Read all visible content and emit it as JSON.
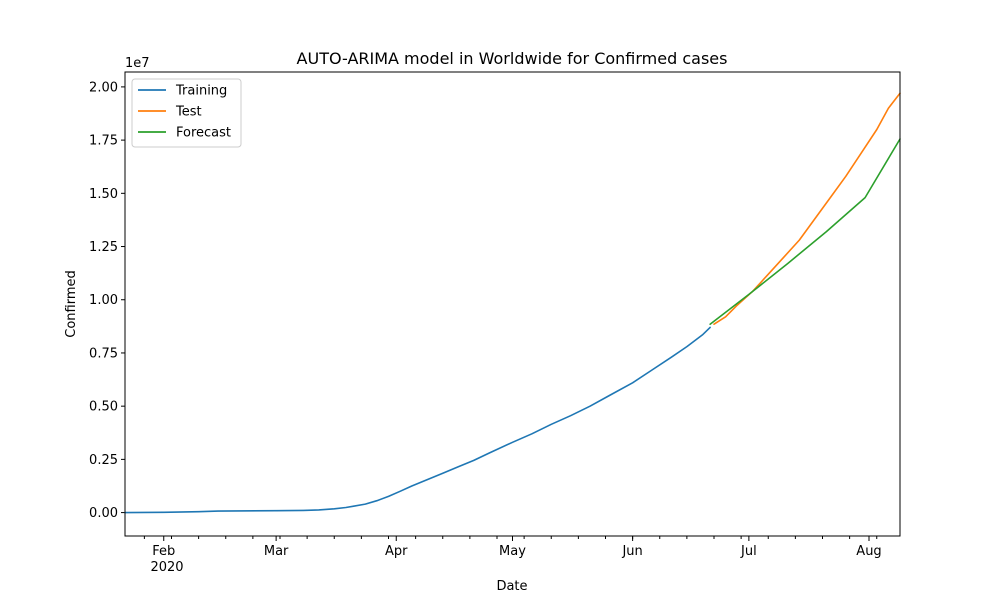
{
  "chart_data": {
    "type": "line",
    "title": "AUTO-ARIMA model in Worldwide for Confirmed cases",
    "xlabel": "Date",
    "ylabel": "Confirmed",
    "y_offset_label": "1e7",
    "xlim": [
      "2020-01-22",
      "2020-08-09"
    ],
    "ylim": [
      -1100000,
      20700000
    ],
    "x_ticks": [
      {
        "date": "2020-02-01",
        "label": "Feb"
      },
      {
        "date": "2020-03-01",
        "label": "Mar"
      },
      {
        "date": "2020-04-01",
        "label": "Apr"
      },
      {
        "date": "2020-05-01",
        "label": "May"
      },
      {
        "date": "2020-06-01",
        "label": "Jun"
      },
      {
        "date": "2020-07-01",
        "label": "Jul"
      },
      {
        "date": "2020-08-01",
        "label": "Aug"
      }
    ],
    "x_year_label": "2020",
    "y_ticks": [
      {
        "value": 0,
        "label": "0.00"
      },
      {
        "value": 2500000,
        "label": "0.25"
      },
      {
        "value": 5000000,
        "label": "0.50"
      },
      {
        "value": 7500000,
        "label": "0.75"
      },
      {
        "value": 10000000,
        "label": "1.00"
      },
      {
        "value": 12500000,
        "label": "1.25"
      },
      {
        "value": 15000000,
        "label": "1.50"
      },
      {
        "value": 17500000,
        "label": "1.75"
      },
      {
        "value": 20000000,
        "label": "2.00"
      }
    ],
    "legend_position": "top-left",
    "grid": false,
    "series": [
      {
        "name": "Training",
        "color": "#1f77b4",
        "points": [
          [
            "2020-01-22",
            0
          ],
          [
            "2020-02-01",
            12000
          ],
          [
            "2020-02-10",
            40000
          ],
          [
            "2020-02-15",
            70000
          ],
          [
            "2020-02-20",
            78000
          ],
          [
            "2020-03-01",
            88000
          ],
          [
            "2020-03-08",
            105000
          ],
          [
            "2020-03-12",
            128000
          ],
          [
            "2020-03-16",
            180000
          ],
          [
            "2020-03-19",
            240000
          ],
          [
            "2020-03-21",
            300000
          ],
          [
            "2020-03-24",
            400000
          ],
          [
            "2020-03-27",
            560000
          ],
          [
            "2020-03-30",
            760000
          ],
          [
            "2020-04-02",
            1000000
          ],
          [
            "2020-04-05",
            1250000
          ],
          [
            "2020-04-09",
            1550000
          ],
          [
            "2020-04-13",
            1850000
          ],
          [
            "2020-04-17",
            2150000
          ],
          [
            "2020-04-21",
            2450000
          ],
          [
            "2020-04-25",
            2800000
          ],
          [
            "2020-05-01",
            3300000
          ],
          [
            "2020-05-06",
            3700000
          ],
          [
            "2020-05-11",
            4150000
          ],
          [
            "2020-05-16",
            4550000
          ],
          [
            "2020-05-21",
            5000000
          ],
          [
            "2020-05-26",
            5500000
          ],
          [
            "2020-06-01",
            6100000
          ],
          [
            "2020-06-06",
            6700000
          ],
          [
            "2020-06-11",
            7300000
          ],
          [
            "2020-06-15",
            7800000
          ],
          [
            "2020-06-19",
            8350000
          ],
          [
            "2020-06-21",
            8700000
          ]
        ]
      },
      {
        "name": "Test",
        "color": "#ff7f0e",
        "points": [
          [
            "2020-06-22",
            8850000
          ],
          [
            "2020-06-25",
            9200000
          ],
          [
            "2020-06-28",
            9750000
          ],
          [
            "2020-07-02",
            10400000
          ],
          [
            "2020-07-06",
            11200000
          ],
          [
            "2020-07-10",
            12000000
          ],
          [
            "2020-07-14",
            12800000
          ],
          [
            "2020-07-18",
            13800000
          ],
          [
            "2020-07-22",
            14800000
          ],
          [
            "2020-07-26",
            15800000
          ],
          [
            "2020-07-30",
            16900000
          ],
          [
            "2020-08-03",
            18000000
          ],
          [
            "2020-08-06",
            19000000
          ],
          [
            "2020-08-09",
            19700000
          ]
        ]
      },
      {
        "name": "Forecast",
        "color": "#2ca02c",
        "points": [
          [
            "2020-06-21",
            8850000
          ],
          [
            "2020-07-01",
            10250000
          ],
          [
            "2020-07-11",
            11700000
          ],
          [
            "2020-07-21",
            13200000
          ],
          [
            "2020-07-31",
            14800000
          ],
          [
            "2020-08-09",
            17550000
          ]
        ]
      }
    ]
  }
}
